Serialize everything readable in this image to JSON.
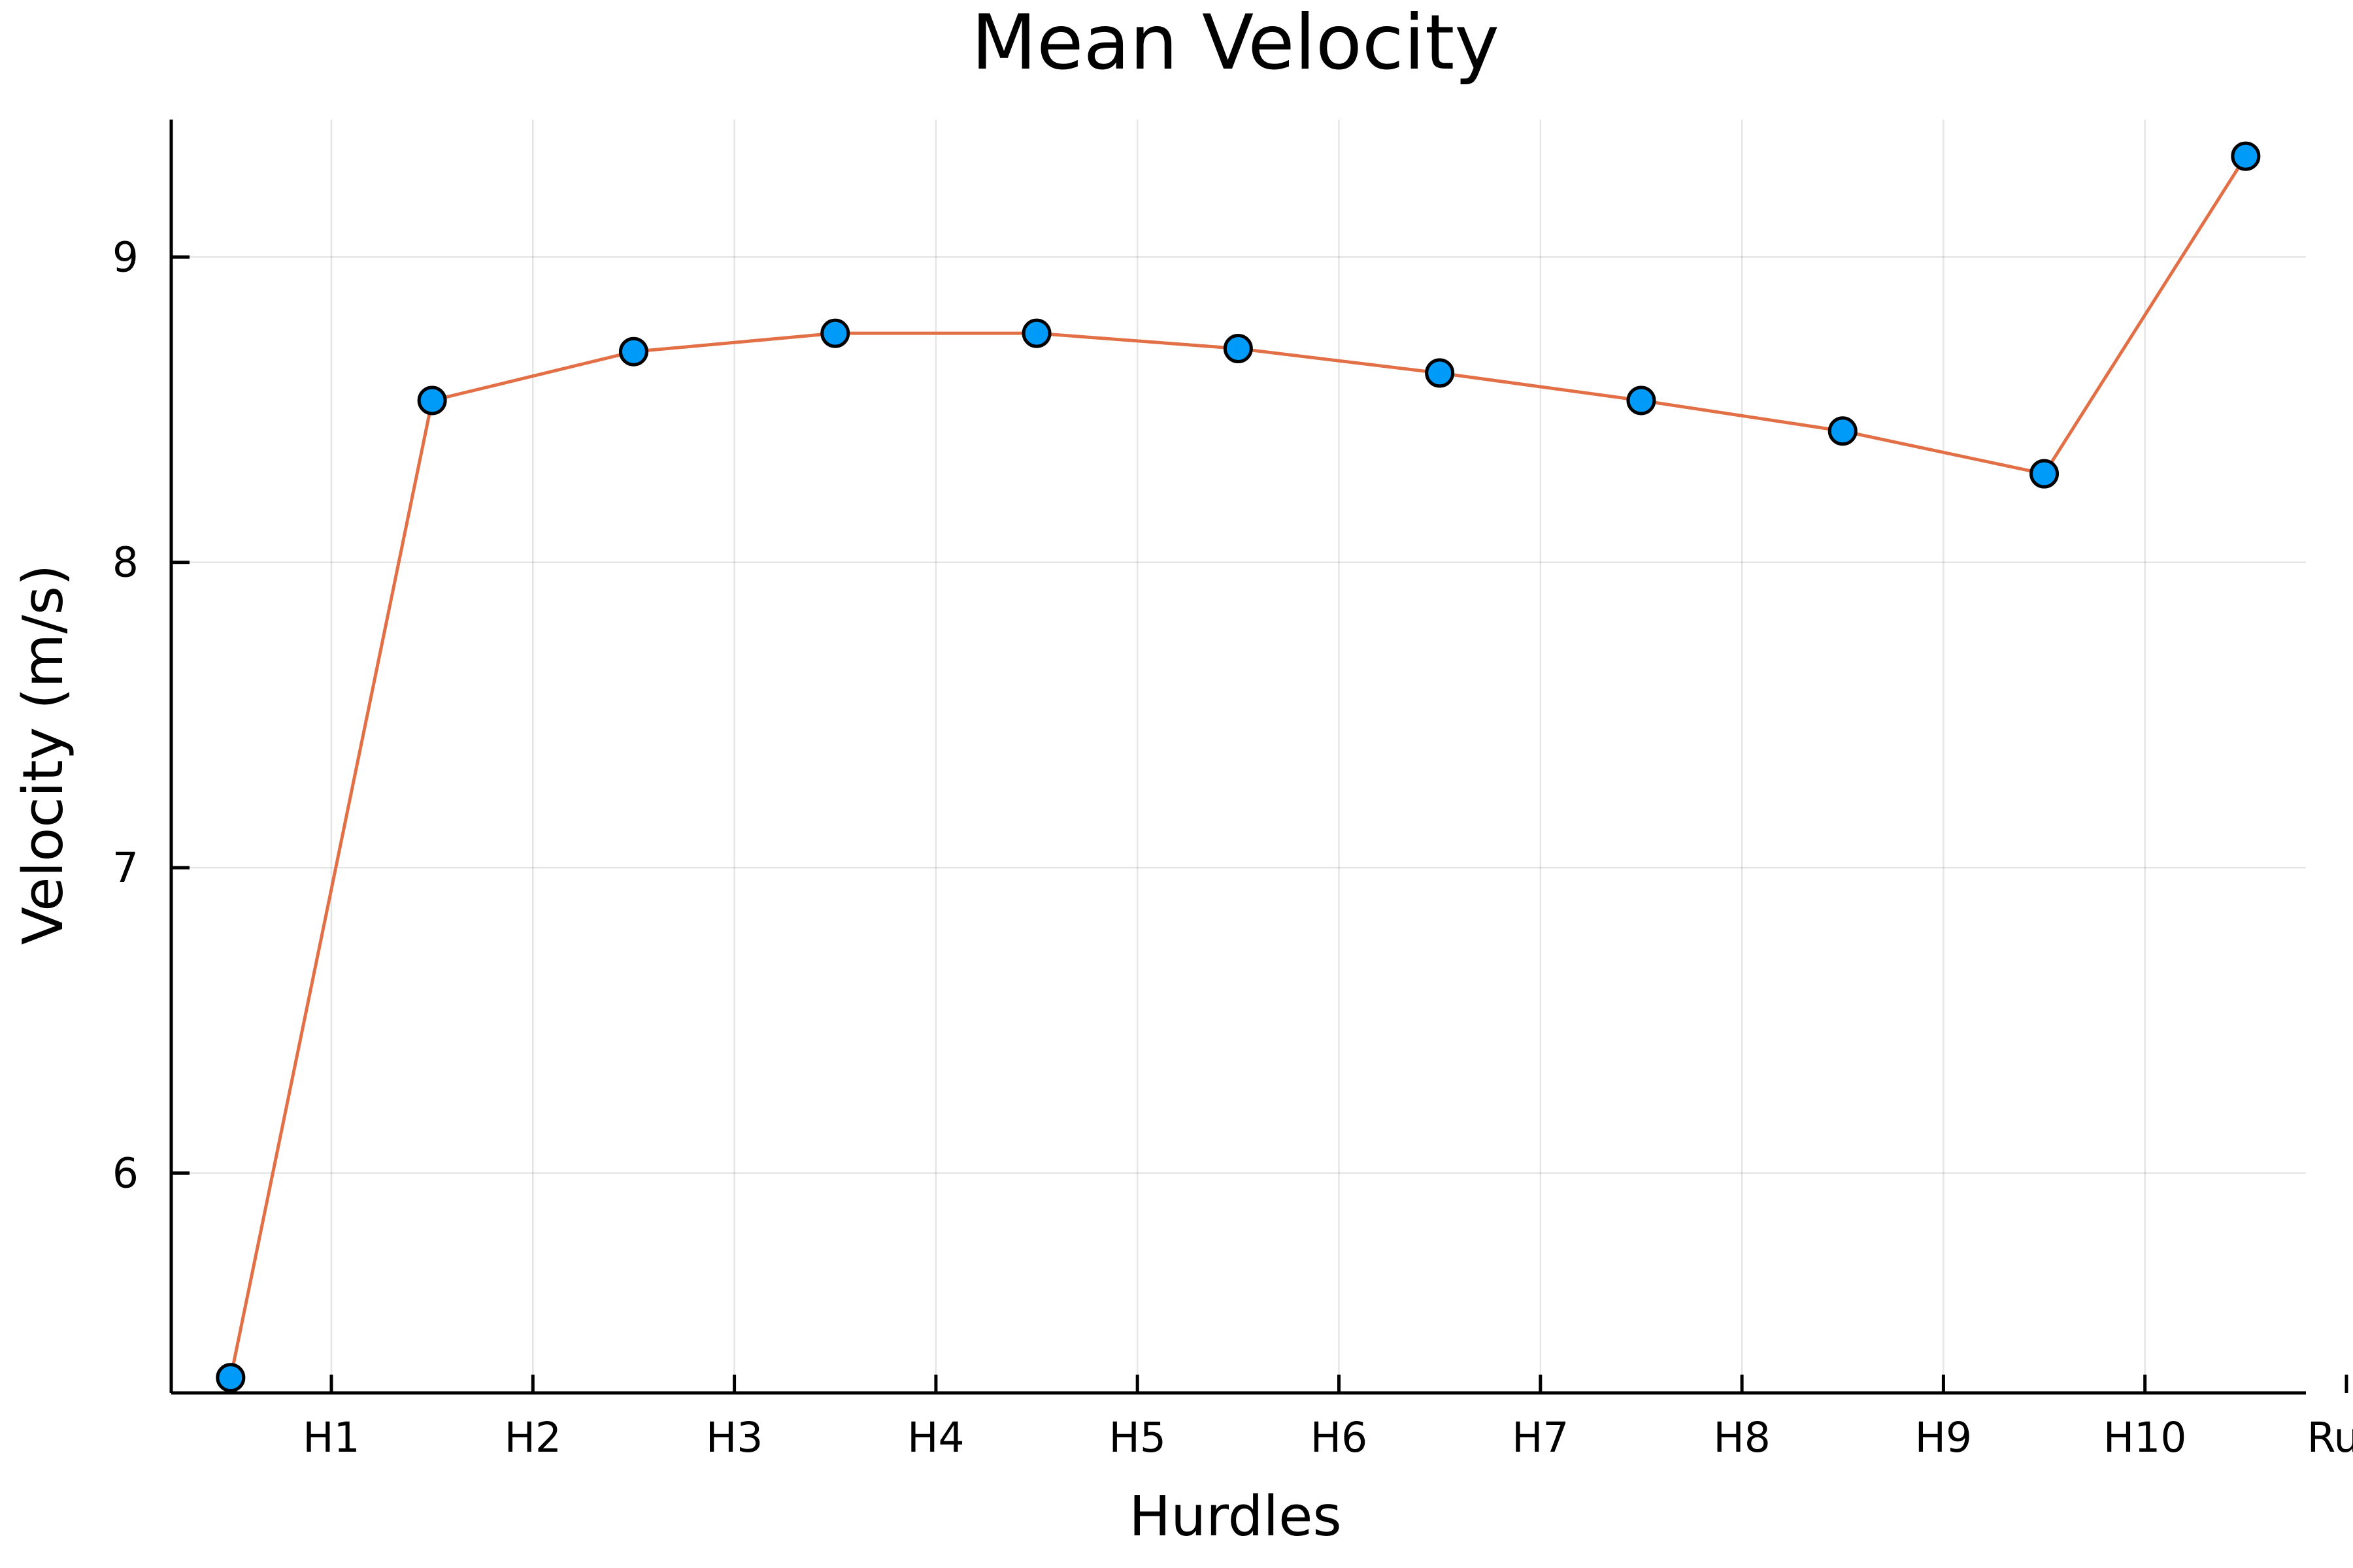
{
  "chart_data": {
    "type": "line",
    "title": "Mean Velocity",
    "xlabel": "Hurdles",
    "ylabel": "Velocity (m/s)",
    "categories": [
      "H1",
      "H2",
      "H3",
      "H4",
      "H5",
      "H6",
      "H7",
      "H8",
      "H9",
      "H10",
      "Run"
    ],
    "y_ticks": [
      6,
      7,
      8,
      9
    ],
    "ylim": [
      5.28,
      9.45
    ],
    "grid": true,
    "legend": "none",
    "series": [
      {
        "color": "#e26f46",
        "marker_color": "#009af9",
        "values": [
          5.33,
          8.53,
          8.69,
          8.75,
          8.75,
          8.7,
          8.62,
          8.53,
          8.43,
          8.29,
          9.33
        ]
      }
    ]
  }
}
